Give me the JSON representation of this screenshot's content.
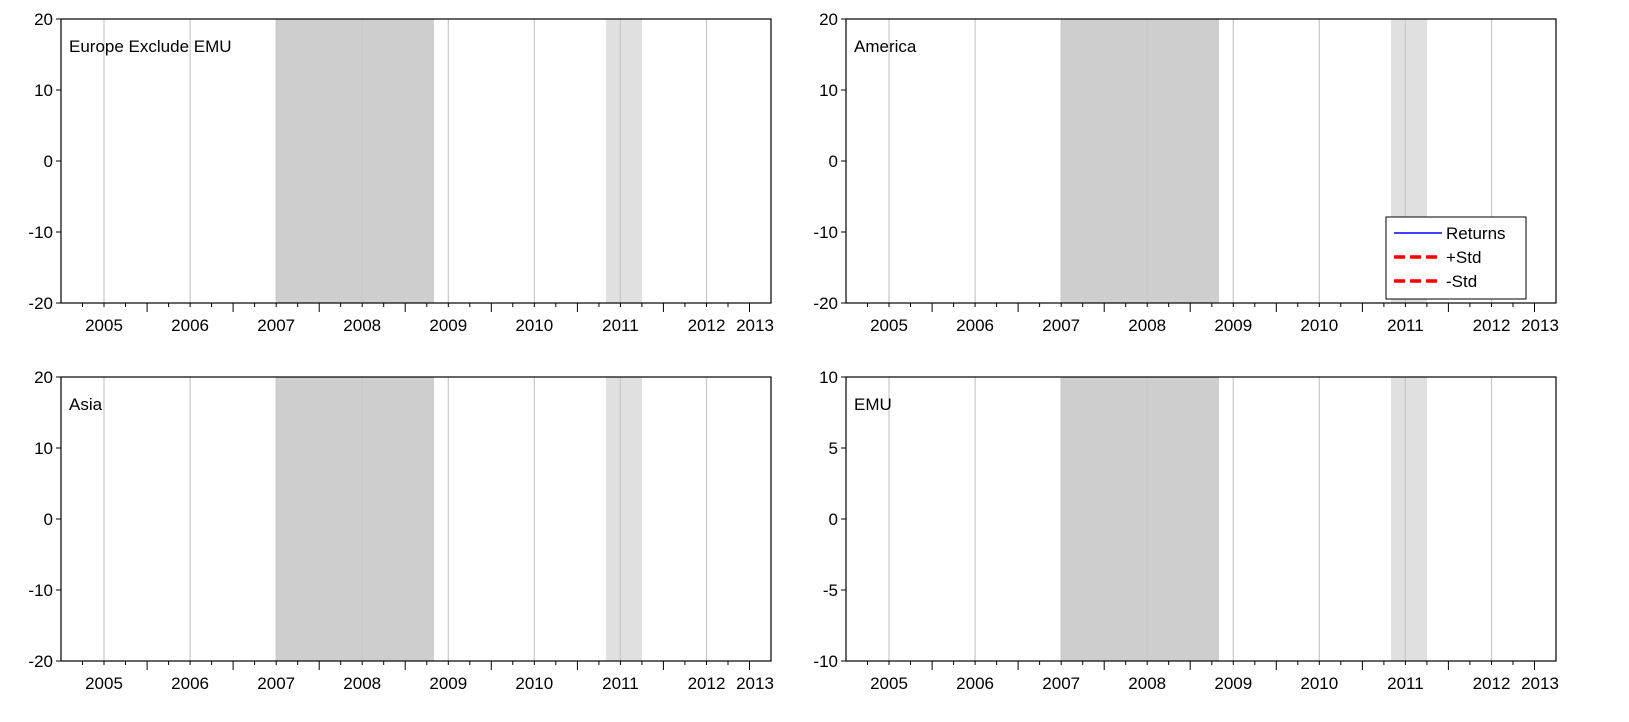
{
  "colors": {
    "crisis_shade": "#cecece",
    "light_shade": "#e0e0e0",
    "year_gridline": "#c8c8c8",
    "returns": "#0000ff",
    "std_bands": "#ff0000"
  },
  "chart_data": [
    {
      "type": "line",
      "title": "Europe Exclude EMU",
      "x_tick_labels": [
        "2005",
        "2006",
        "2007",
        "2008",
        "2009",
        "2010",
        "2011",
        "2012",
        "2013"
      ],
      "y_ticks": [
        20,
        10,
        0,
        -10,
        -20
      ],
      "ylim": [
        -20,
        20
      ],
      "xlim": [
        "2005-01",
        "2013-04"
      ],
      "shaded_periods": [
        {
          "start": "2007-07",
          "end": "2009-05",
          "shade": "dark"
        },
        {
          "start": "2011-05",
          "end": "2011-10",
          "shade": "light"
        }
      ],
      "grid": "vertical year lines",
      "series": []
    },
    {
      "type": "line",
      "title": "America",
      "x_tick_labels": [
        "2005",
        "2006",
        "2007",
        "2008",
        "2009",
        "2010",
        "2011",
        "2012",
        "2013"
      ],
      "y_ticks": [
        20,
        10,
        0,
        -10,
        -20
      ],
      "ylim": [
        -20,
        20
      ],
      "xlim": [
        "2005-01",
        "2013-04"
      ],
      "shaded_periods": [
        {
          "start": "2007-07",
          "end": "2009-05",
          "shade": "dark"
        },
        {
          "start": "2011-05",
          "end": "2011-10",
          "shade": "light"
        }
      ],
      "grid": "vertical year lines",
      "legend": {
        "placement": "bottom-right",
        "entries": [
          {
            "label": "Returns",
            "style": "solid",
            "color": "#0000ff"
          },
          {
            "label": "+Std",
            "style": "dashed",
            "color": "#ff0000"
          },
          {
            "label": "-Std",
            "style": "dashed",
            "color": "#ff0000"
          }
        ]
      },
      "series": []
    },
    {
      "type": "line",
      "title": "Asia",
      "x_tick_labels": [
        "2005",
        "2006",
        "2007",
        "2008",
        "2009",
        "2010",
        "2011",
        "2012",
        "2013"
      ],
      "y_ticks": [
        20,
        10,
        0,
        -10,
        -20
      ],
      "ylim": [
        -20,
        20
      ],
      "xlim": [
        "2005-01",
        "2013-04"
      ],
      "shaded_periods": [
        {
          "start": "2007-07",
          "end": "2009-05",
          "shade": "dark"
        },
        {
          "start": "2011-05",
          "end": "2011-10",
          "shade": "light"
        }
      ],
      "grid": "vertical year lines",
      "series": []
    },
    {
      "type": "line",
      "title": "EMU",
      "x_tick_labels": [
        "2005",
        "2006",
        "2007",
        "2008",
        "2009",
        "2010",
        "2011",
        "2012",
        "2013"
      ],
      "y_ticks": [
        10,
        5,
        0,
        -5,
        -10
      ],
      "ylim": [
        -10,
        10
      ],
      "xlim": [
        "2005-01",
        "2013-04"
      ],
      "shaded_periods": [
        {
          "start": "2007-07",
          "end": "2009-05",
          "shade": "dark"
        },
        {
          "start": "2011-05",
          "end": "2011-10",
          "shade": "light"
        }
      ],
      "grid": "vertical year lines",
      "series": []
    }
  ]
}
